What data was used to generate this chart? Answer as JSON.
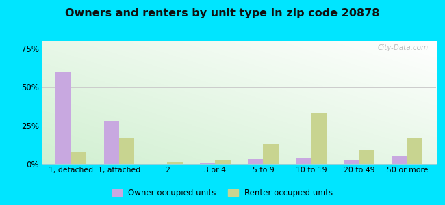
{
  "title": "Owners and renters by unit type in zip code 20878",
  "categories": [
    "1, detached",
    "1, attached",
    "2",
    "3 or 4",
    "5 to 9",
    "10 to 19",
    "20 to 49",
    "50 or more"
  ],
  "owner_values": [
    60,
    28,
    0,
    0.5,
    3,
    4,
    2.5,
    5
  ],
  "renter_values": [
    8,
    17,
    1.5,
    2.5,
    13,
    33,
    9,
    17
  ],
  "owner_color": "#c8a8e0",
  "renter_color": "#c8d490",
  "ylim": [
    0,
    80
  ],
  "yticks": [
    0,
    25,
    50,
    75
  ],
  "ytick_labels": [
    "0%",
    "25%",
    "50%",
    "75%"
  ],
  "outer_background": "#00e5ff",
  "title_fontsize": 11.5,
  "watermark": "City-Data.com",
  "legend_owner": "Owner occupied units",
  "legend_renter": "Renter occupied units"
}
